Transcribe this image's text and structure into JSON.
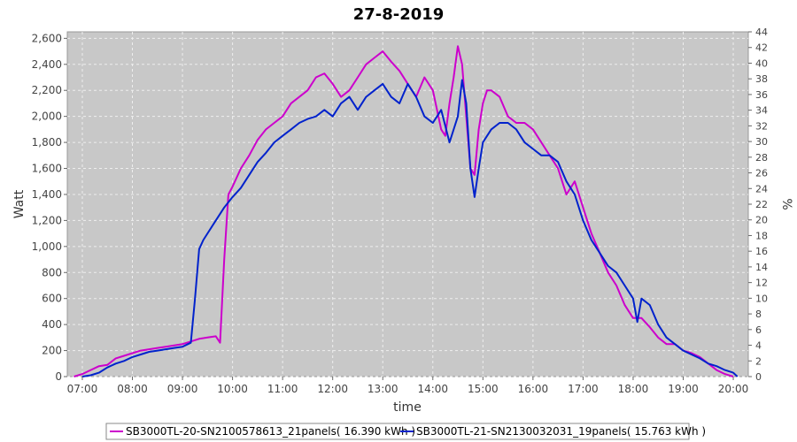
{
  "chart_data": {
    "type": "line",
    "title": "27-8-2019",
    "xlabel": "time",
    "ylabel": "Watt",
    "y2label": "%",
    "ylim": [
      0,
      2650
    ],
    "y2lim": [
      0,
      44
    ],
    "xlim_hours": [
      6.7,
      20.3
    ],
    "grid": true,
    "legend_position": "bottom",
    "x_ticks": [
      "07:00",
      "08:00",
      "09:00",
      "10:00",
      "11:00",
      "12:00",
      "13:00",
      "14:00",
      "15:00",
      "16:00",
      "17:00",
      "18:00",
      "19:00",
      "20:00"
    ],
    "y_ticks": [
      "0",
      "200",
      "400",
      "600",
      "800",
      "1,000",
      "1,200",
      "1,400",
      "1,600",
      "1,800",
      "2,000",
      "2,200",
      "2,400",
      "2,600"
    ],
    "y2_ticks": [
      "0",
      "2",
      "4",
      "6",
      "8",
      "10",
      "12",
      "14",
      "16",
      "18",
      "20",
      "22",
      "24",
      "26",
      "28",
      "30",
      "32",
      "34",
      "36",
      "38",
      "40",
      "42",
      "44"
    ],
    "series": [
      {
        "name": "SB3000TL-20-SN2100578613_21panels",
        "legend_label": "SB3000TL-20-SN2100578613_21panels( 16.390 kWh )",
        "color": "#cc00cc",
        "x": [
          "06:50",
          "07:00",
          "07:10",
          "07:20",
          "07:30",
          "07:40",
          "07:50",
          "08:00",
          "08:10",
          "08:20",
          "08:30",
          "08:40",
          "08:50",
          "09:00",
          "09:10",
          "09:20",
          "09:30",
          "09:40",
          "09:45",
          "09:50",
          "09:55",
          "10:00",
          "10:10",
          "10:20",
          "10:30",
          "10:40",
          "10:50",
          "11:00",
          "11:10",
          "11:20",
          "11:30",
          "11:40",
          "11:50",
          "12:00",
          "12:10",
          "12:20",
          "12:30",
          "12:40",
          "12:50",
          "13:00",
          "13:10",
          "13:20",
          "13:30",
          "13:40",
          "13:50",
          "14:00",
          "14:10",
          "14:15",
          "14:20",
          "14:25",
          "14:30",
          "14:35",
          "14:40",
          "14:45",
          "14:50",
          "14:55",
          "15:00",
          "15:05",
          "15:10",
          "15:20",
          "15:30",
          "15:40",
          "15:50",
          "16:00",
          "16:10",
          "16:20",
          "16:30",
          "16:40",
          "16:50",
          "17:00",
          "17:10",
          "17:20",
          "17:30",
          "17:40",
          "17:50",
          "18:00",
          "18:10",
          "18:20",
          "18:30",
          "18:40",
          "18:50",
          "19:00",
          "19:10",
          "19:20",
          "19:30",
          "19:40",
          "19:50",
          "20:00"
        ],
        "values": [
          0,
          20,
          50,
          80,
          90,
          140,
          160,
          180,
          200,
          210,
          220,
          230,
          240,
          250,
          270,
          290,
          300,
          310,
          260,
          900,
          1400,
          1460,
          1600,
          1700,
          1820,
          1900,
          1950,
          2000,
          2100,
          2150,
          2200,
          2300,
          2330,
          2250,
          2150,
          2200,
          2300,
          2400,
          2450,
          2500,
          2420,
          2350,
          2250,
          2150,
          2300,
          2200,
          1900,
          1850,
          2100,
          2300,
          2540,
          2400,
          2000,
          1600,
          1550,
          1900,
          2100,
          2200,
          2200,
          2150,
          2000,
          1950,
          1950,
          1900,
          1800,
          1700,
          1600,
          1400,
          1500,
          1300,
          1100,
          950,
          800,
          700,
          550,
          450,
          450,
          380,
          300,
          250,
          250,
          200,
          180,
          150,
          100,
          50,
          20,
          0
        ]
      },
      {
        "name": "SB3000TL-21-SN2130032031_19panels",
        "legend_label": "SB3000TL-21-SN2130032031_19panels( 15.763 kWh )",
        "color": "#0022cc",
        "x": [
          "07:00",
          "07:10",
          "07:20",
          "07:30",
          "07:40",
          "07:50",
          "08:00",
          "08:10",
          "08:20",
          "08:30",
          "08:40",
          "08:50",
          "09:00",
          "09:10",
          "09:15",
          "09:20",
          "09:25",
          "09:30",
          "09:40",
          "09:50",
          "10:00",
          "10:10",
          "10:20",
          "10:30",
          "10:40",
          "10:50",
          "11:00",
          "11:10",
          "11:20",
          "11:30",
          "11:40",
          "11:50",
          "12:00",
          "12:10",
          "12:20",
          "12:30",
          "12:40",
          "12:50",
          "13:00",
          "13:10",
          "13:20",
          "13:30",
          "13:40",
          "13:50",
          "14:00",
          "14:10",
          "14:20",
          "14:30",
          "14:35",
          "14:40",
          "14:45",
          "14:50",
          "14:55",
          "15:00",
          "15:10",
          "15:20",
          "15:30",
          "15:40",
          "15:50",
          "16:00",
          "16:10",
          "16:20",
          "16:30",
          "16:40",
          "16:50",
          "17:00",
          "17:10",
          "17:20",
          "17:30",
          "17:40",
          "17:50",
          "18:00",
          "18:05",
          "18:10",
          "18:20",
          "18:30",
          "18:40",
          "18:50",
          "19:00",
          "19:10",
          "19:20",
          "19:30",
          "19:40",
          "19:50",
          "20:00",
          "20:05"
        ],
        "values": [
          0,
          10,
          30,
          70,
          100,
          120,
          150,
          170,
          190,
          200,
          210,
          220,
          230,
          260,
          600,
          980,
          1050,
          1100,
          1200,
          1300,
          1380,
          1450,
          1550,
          1650,
          1720,
          1800,
          1850,
          1900,
          1950,
          1980,
          2000,
          2050,
          2000,
          2100,
          2150,
          2050,
          2150,
          2200,
          2250,
          2150,
          2100,
          2250,
          2150,
          2000,
          1950,
          2050,
          1800,
          2000,
          2280,
          2100,
          1600,
          1380,
          1600,
          1800,
          1900,
          1950,
          1950,
          1900,
          1800,
          1750,
          1700,
          1700,
          1650,
          1500,
          1400,
          1200,
          1050,
          950,
          850,
          800,
          700,
          600,
          420,
          600,
          550,
          400,
          300,
          250,
          200,
          170,
          140,
          100,
          80,
          50,
          30,
          0
        ]
      }
    ]
  }
}
